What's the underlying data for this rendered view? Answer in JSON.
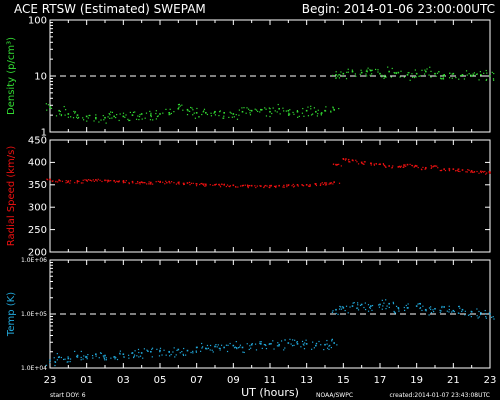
{
  "header": {
    "title": "ACE RTSW (Estimated) SWEPAM",
    "begin": "Begin: 2014-01-06 23:00:00UTC"
  },
  "footer": {
    "start_doy": "start DOY:  6",
    "agency": "NOAA/SWPC",
    "created": "created:2014-01-07 23:43:08UTC"
  },
  "colors": {
    "background": "#000000",
    "frame": "#ffffff",
    "density": "#33dd33",
    "speed": "#ee1111",
    "temperature": "#22aadd"
  },
  "chart_data": [
    {
      "type": "scatter",
      "panel": "density",
      "ylabel": "Density (p/cm³)",
      "yscale": "log",
      "ylim": [
        1,
        100
      ],
      "yticks": [
        "1",
        "10",
        "100"
      ],
      "reference_line": 10,
      "x": [
        23.0,
        23.5,
        24.0,
        24.5,
        25.0,
        25.5,
        26.0,
        26.5,
        27.0,
        27.5,
        28.0,
        28.5,
        29.0,
        29.5,
        30.0,
        30.5,
        31.0,
        31.5,
        32.0,
        32.5,
        33.0,
        33.5,
        34.0,
        34.5,
        35.0,
        35.5,
        36.0,
        36.5,
        37.0,
        37.5,
        38.0,
        38.5,
        38.6,
        39.0,
        39.5,
        40.0,
        40.5,
        41.0,
        41.5,
        42.0,
        42.5,
        43.0,
        43.5,
        44.0,
        44.5,
        45.0,
        45.5,
        46.0,
        46.5,
        47.0
      ],
      "y": [
        2.8,
        2.4,
        2.1,
        2.0,
        1.9,
        1.8,
        1.8,
        1.9,
        1.9,
        2.0,
        2.1,
        2.0,
        2.1,
        2.2,
        2.6,
        2.5,
        2.2,
        2.2,
        2.3,
        2.2,
        2.1,
        2.3,
        2.4,
        2.5,
        2.3,
        2.6,
        2.4,
        2.3,
        2.4,
        2.3,
        2.4,
        2.5,
        10.5,
        11.0,
        12.0,
        11.5,
        12.5,
        11.0,
        12.0,
        11.5,
        10.5,
        11.0,
        12.0,
        11.0,
        10.5,
        11.0,
        10.5,
        10.0,
        10.5,
        10.0
      ]
    },
    {
      "type": "scatter",
      "panel": "speed",
      "ylabel": "Radial Speed (km/s)",
      "ylim": [
        200,
        450
      ],
      "yticks": [
        "200",
        "250",
        "300",
        "350",
        "400",
        "450"
      ],
      "x": [
        23.0,
        23.5,
        24.0,
        24.5,
        25.0,
        25.5,
        26.0,
        26.5,
        27.0,
        27.5,
        28.0,
        28.5,
        29.0,
        29.5,
        30.0,
        30.5,
        31.0,
        31.5,
        32.0,
        32.5,
        33.0,
        33.5,
        34.0,
        34.5,
        35.0,
        35.5,
        36.0,
        36.5,
        37.0,
        37.5,
        38.0,
        38.5,
        38.6,
        39.0,
        39.5,
        40.0,
        40.5,
        41.0,
        41.5,
        42.0,
        42.5,
        43.0,
        43.5,
        44.0,
        44.5,
        45.0,
        45.5,
        46.0,
        46.5,
        47.0
      ],
      "y": [
        362,
        360,
        358,
        358,
        360,
        361,
        360,
        359,
        358,
        357,
        356,
        355,
        356,
        357,
        355,
        354,
        352,
        351,
        350,
        350,
        349,
        348,
        348,
        347,
        348,
        348,
        349,
        350,
        350,
        352,
        354,
        356,
        395,
        408,
        405,
        400,
        398,
        396,
        392,
        390,
        395,
        392,
        388,
        392,
        385,
        385,
        383,
        381,
        380,
        378
      ]
    },
    {
      "type": "scatter",
      "panel": "temperature",
      "ylabel": "Temp (K)",
      "yscale": "log",
      "ylim": [
        10000,
        1000000
      ],
      "yticks": [
        "1.0E+04",
        "1.0E+05",
        "1.0E+06"
      ],
      "reference_line": 100000,
      "x": [
        23.0,
        23.5,
        24.0,
        24.5,
        25.0,
        25.5,
        26.0,
        26.5,
        27.0,
        27.5,
        28.0,
        28.5,
        29.0,
        29.5,
        30.0,
        30.5,
        31.0,
        31.5,
        32.0,
        32.5,
        33.0,
        33.5,
        34.0,
        34.5,
        35.0,
        35.5,
        36.0,
        36.5,
        37.0,
        37.5,
        38.0,
        38.5,
        38.6,
        39.0,
        39.5,
        40.0,
        40.5,
        41.0,
        41.5,
        42.0,
        42.5,
        43.0,
        43.5,
        44.0,
        44.5,
        45.0,
        45.5,
        46.0,
        46.5,
        47.0
      ],
      "y": [
        14000,
        16000,
        15000,
        17000,
        16000,
        18000,
        17000,
        16000,
        18000,
        19000,
        19000,
        20000,
        21000,
        20000,
        22000,
        21000,
        24000,
        23000,
        25000,
        24000,
        26000,
        24000,
        27000,
        28000,
        28000,
        27000,
        29000,
        28000,
        28000,
        26000,
        27000,
        29000,
        120000,
        130000,
        140000,
        150000,
        140000,
        150000,
        155000,
        130000,
        130000,
        140000,
        120000,
        125000,
        135000,
        115000,
        120000,
        110000,
        105000,
        100000
      ]
    }
  ],
  "xaxis": {
    "label": "UT (hours)",
    "range": [
      23,
      47
    ],
    "ticks": [
      "23",
      "01",
      "03",
      "05",
      "07",
      "09",
      "11",
      "13",
      "15",
      "17",
      "19",
      "21",
      "23"
    ]
  }
}
